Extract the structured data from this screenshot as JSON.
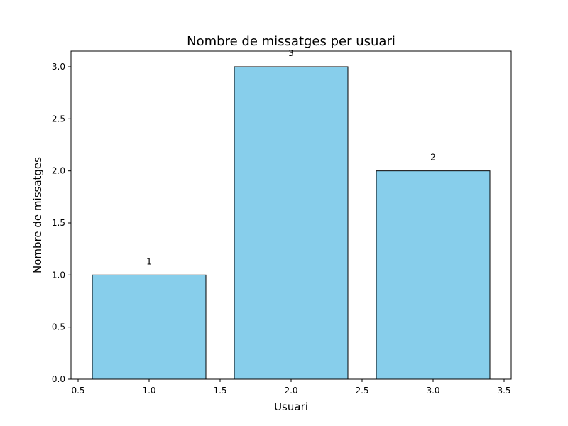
{
  "chart_data": {
    "type": "bar",
    "title": "Nombre de missatges per usuari",
    "xlabel": "Usuari",
    "ylabel": "Nombre de missatges",
    "x": [
      1,
      2,
      3
    ],
    "values": [
      1,
      3,
      2
    ],
    "data_labels": [
      "1",
      "3",
      "2"
    ],
    "bar_width": 0.8,
    "xlim": [
      0.45,
      3.55
    ],
    "ylim": [
      0,
      3.15
    ],
    "xticks": [
      0.5,
      1.0,
      1.5,
      2.0,
      2.5,
      3.0,
      3.5
    ],
    "xtick_labels": [
      "0.5",
      "1.0",
      "1.5",
      "2.0",
      "2.5",
      "3.0",
      "3.5"
    ],
    "yticks": [
      0,
      0.5,
      1.0,
      1.5,
      2.0,
      2.5,
      3.0
    ],
    "ytick_labels": [
      "0.0",
      "0.5",
      "1.0",
      "1.5",
      "2.0",
      "2.5",
      "3.0"
    ],
    "grid": false,
    "bar_color": "#87ceeb",
    "edge_color": "#000000"
  }
}
